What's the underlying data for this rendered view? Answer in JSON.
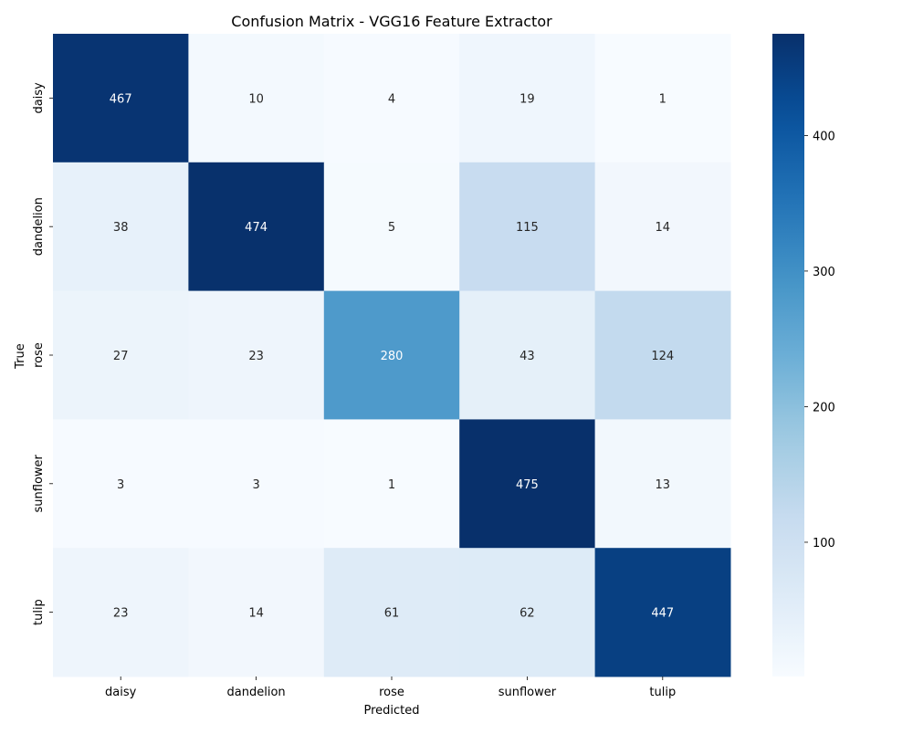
{
  "chart_data": {
    "type": "heatmap",
    "title": "Confusion Matrix - VGG16 Feature Extractor",
    "xlabel": "Predicted",
    "ylabel": "True",
    "x_categories": [
      "daisy",
      "dandelion",
      "rose",
      "sunflower",
      "tulip"
    ],
    "y_categories": [
      "daisy",
      "dandelion",
      "rose",
      "sunflower",
      "tulip"
    ],
    "values": [
      [
        467,
        10,
        4,
        19,
        1
      ],
      [
        38,
        474,
        5,
        115,
        14
      ],
      [
        27,
        23,
        280,
        43,
        124
      ],
      [
        3,
        3,
        1,
        475,
        13
      ],
      [
        23,
        14,
        61,
        62,
        447
      ]
    ],
    "colormap": "Blues",
    "color_range": [
      1,
      475
    ],
    "colorbar_ticks": [
      100,
      200,
      300,
      400
    ],
    "annotated": true,
    "grid": false
  }
}
